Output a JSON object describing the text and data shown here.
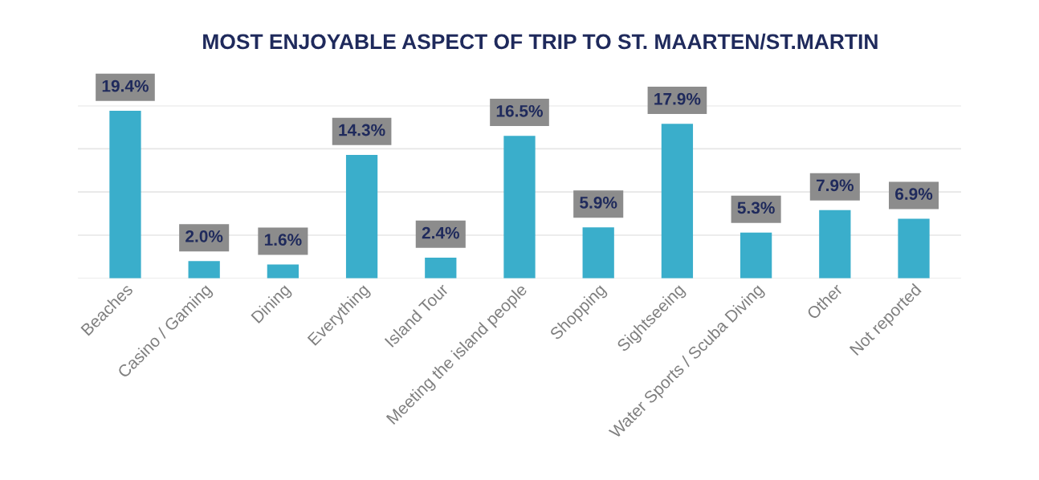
{
  "chart_data": {
    "type": "bar",
    "title": "MOST ENJOYABLE ASPECT OF TRIP TO ST. MAARTEN/ST.MARTIN",
    "categories": [
      "Beaches",
      "Casino / Gaming",
      "Dining",
      "Everything",
      "Island Tour",
      "Meeting the island people",
      "Shopping",
      "Sightseeing",
      "Water Sports / Scuba Diving",
      "Other",
      "Not reported"
    ],
    "values": [
      19.4,
      2.0,
      1.6,
      14.3,
      2.4,
      16.5,
      5.9,
      17.9,
      5.3,
      7.9,
      6.9
    ],
    "value_labels": [
      "19.4%",
      "2.0%",
      "1.6%",
      "14.3%",
      "2.4%",
      "16.5%",
      "5.9%",
      "17.9%",
      "5.3%",
      "7.9%",
      "6.9%"
    ],
    "color": "#3aaecb",
    "ylim": [
      0,
      20
    ],
    "yticks": [
      {
        "value": 0,
        "label": null
      },
      {
        "value": 5,
        "label": null
      },
      {
        "value": 10,
        "label": null
      },
      {
        "value": 15,
        "label": null
      },
      {
        "value": 20,
        "label": null
      }
    ],
    "grid": "y",
    "tick_labels": "x"
  }
}
